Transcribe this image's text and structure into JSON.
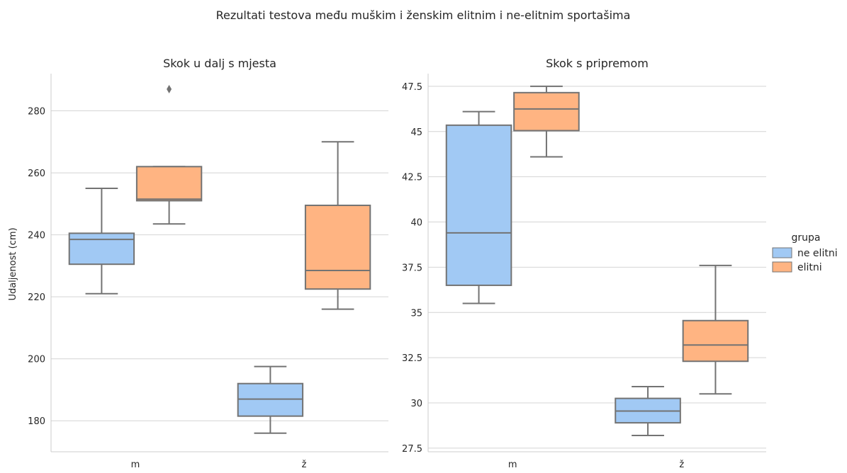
{
  "chart_data": {
    "suptitle": "Rezultati testova među muškim i ženskim elitnim i ne-elitnim sportašima",
    "ylabel": "Udaljenost (cm)",
    "categories": [
      "m",
      "ž"
    ],
    "legend": {
      "title": "grupa",
      "placement": "center-right",
      "entries": [
        {
          "name": "ne elitni",
          "color": "#a1c9f4"
        },
        {
          "name": "elitni",
          "color": "#ffb482"
        }
      ]
    },
    "panels": [
      {
        "type": "box",
        "title": "Skok u dalj s mjesta",
        "ylim": [
          170,
          292
        ],
        "yticks": [
          180,
          200,
          220,
          240,
          260,
          280
        ],
        "grid": true,
        "series": [
          {
            "name": "ne elitni",
            "boxes": [
              {
                "category": "m",
                "whisker_low": 221,
                "q1": 230.5,
                "median": 238.5,
                "q3": 240.5,
                "whisker_high": 255,
                "outliers": []
              },
              {
                "category": "ž",
                "whisker_low": 176,
                "q1": 181.5,
                "median": 187,
                "q3": 192,
                "whisker_high": 197.5,
                "outliers": []
              }
            ]
          },
          {
            "name": "elitni",
            "boxes": [
              {
                "category": "m",
                "whisker_low": 243.5,
                "q1": 251,
                "median": 251.5,
                "q3": 262,
                "whisker_high": 262,
                "outliers": [
                  287
                ]
              },
              {
                "category": "ž",
                "whisker_low": 216,
                "q1": 222.5,
                "median": 228.5,
                "q3": 249.5,
                "whisker_high": 270,
                "outliers": []
              }
            ]
          }
        ]
      },
      {
        "type": "box",
        "title": "Skok s pripremom",
        "ylim": [
          27.3,
          48.2
        ],
        "yticks": [
          27.5,
          30.0,
          32.5,
          35.0,
          37.5,
          40.0,
          42.5,
          45.0,
          47.5
        ],
        "grid": true,
        "series": [
          {
            "name": "ne elitni",
            "boxes": [
              {
                "category": "m",
                "whisker_low": 35.5,
                "q1": 36.5,
                "median": 39.4,
                "q3": 45.35,
                "whisker_high": 46.1,
                "outliers": []
              },
              {
                "category": "ž",
                "whisker_low": 28.2,
                "q1": 28.9,
                "median": 29.55,
                "q3": 30.25,
                "whisker_high": 30.9,
                "outliers": []
              }
            ]
          },
          {
            "name": "elitni",
            "boxes": [
              {
                "category": "m",
                "whisker_low": 43.6,
                "q1": 45.05,
                "median": 46.25,
                "q3": 47.15,
                "whisker_high": 47.5,
                "outliers": []
              },
              {
                "category": "ž",
                "whisker_low": 30.5,
                "q1": 32.3,
                "median": 33.2,
                "q3": 34.55,
                "whisker_high": 37.6,
                "outliers": []
              }
            ]
          }
        ]
      }
    ]
  }
}
